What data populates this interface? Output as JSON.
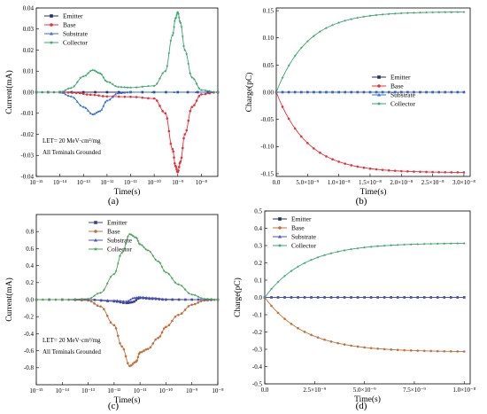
{
  "chart_data": [
    {
      "panel": "(a)",
      "type": "line",
      "xscale": "log",
      "xlim": [
        1e-15,
        5e-08
      ],
      "ylim": [
        -0.04,
        0.04
      ],
      "xlabel": "Time(s)",
      "ylabel": "Current(mA)",
      "xticks": [
        1e-15,
        1e-14,
        1e-13,
        1e-12,
        1e-11,
        1e-10,
        1e-09,
        1e-08
      ],
      "xticklabels": [
        "10⁻¹⁵",
        "10⁻¹⁴",
        "10⁻¹³",
        "10⁻¹²",
        "10⁻¹¹",
        "10⁻¹⁰",
        "10⁻⁹",
        "10⁻⁸"
      ],
      "yticks": [
        -0.04,
        -0.03,
        -0.02,
        -0.01,
        0.0,
        0.01,
        0.02,
        0.03,
        0.04
      ],
      "yticklabels": [
        "-0.04",
        "-0.03",
        "-0.02",
        "-0.01",
        "0.00",
        "0.01",
        "0.02",
        "0.03",
        "0.04"
      ],
      "legend": "top-left",
      "annotations": [
        "LET= 20 MeV·cm²/mg",
        "All Teminals Grounded"
      ],
      "series": [
        {
          "name": "Emitter",
          "color": "#1f2f6b",
          "marker": "square",
          "x": [
            1e-15,
            1e-13,
            1e-11,
            1e-09,
            5e-08
          ],
          "y": [
            0,
            0,
            0,
            0,
            0
          ]
        },
        {
          "name": "Base",
          "color": "#e8303a",
          "marker": "circle",
          "x": [
            1e-15,
            1e-14,
            5e-14,
            2e-13,
            1e-12,
            1e-11,
            1e-10,
            3e-10,
            6e-10,
            8e-10,
            1e-09,
            1.3e-09,
            2e-09,
            4e-09,
            1e-08,
            5e-08
          ],
          "y": [
            0,
            0,
            -0.0003,
            -0.0012,
            -0.002,
            -0.0022,
            -0.003,
            -0.01,
            -0.027,
            -0.035,
            -0.038,
            -0.033,
            -0.02,
            -0.007,
            -0.001,
            0
          ]
        },
        {
          "name": "Substrate",
          "color": "#2f6fd6",
          "marker": "triangle",
          "x": [
            1e-15,
            1e-14,
            3e-14,
            1e-13,
            2.5e-13,
            5e-13,
            1e-12,
            3e-12,
            1e-11,
            5e-08
          ],
          "y": [
            0,
            0,
            -0.002,
            -0.007,
            -0.0105,
            -0.009,
            -0.004,
            -0.0005,
            0,
            0
          ]
        },
        {
          "name": "Collector",
          "color": "#3aa56e",
          "marker": "star",
          "x": [
            1e-15,
            1e-14,
            3e-14,
            1e-13,
            2.5e-13,
            5e-13,
            1e-12,
            3e-12,
            1e-11,
            1e-10,
            3e-10,
            6e-10,
            8e-10,
            1e-09,
            1.3e-09,
            2e-09,
            4e-09,
            1e-08,
            5e-08
          ],
          "y": [
            0,
            0,
            0.002,
            0.0075,
            0.0105,
            0.009,
            0.005,
            0.0025,
            0.0022,
            0.003,
            0.01,
            0.027,
            0.035,
            0.038,
            0.033,
            0.02,
            0.007,
            0.001,
            0
          ]
        }
      ]
    },
    {
      "panel": "(b)",
      "type": "line",
      "xscale": "linear",
      "xlim": [
        0,
        3.1e-08
      ],
      "ylim": [
        -0.155,
        0.155
      ],
      "xlabel": "Time(s)",
      "ylabel": "Charge(pC)",
      "xticks": [
        0,
        5e-09,
        1e-08,
        1.5e-08,
        2e-08,
        2.5e-08,
        3e-08
      ],
      "xticklabels": [
        "0.0",
        "5.0×10⁻⁹",
        "1.0×10⁻⁸",
        "1.5×10⁻⁸",
        "2.0×10⁻⁸",
        "2.5×10⁻⁸",
        "3.0×10⁻⁸"
      ],
      "yticks": [
        -0.15,
        -0.1,
        -0.05,
        0.0,
        0.05,
        0.1,
        0.15
      ],
      "yticklabels": [
        "-0.15",
        "-0.10",
        "-0.05",
        "0.00",
        "0.05",
        "0.10",
        "0.15"
      ],
      "legend": "right",
      "series": [
        {
          "name": "Emitter",
          "color": "#1f2f6b",
          "marker": "square",
          "final": 0,
          "tau": 5e-09
        },
        {
          "name": "Base",
          "color": "#e8303a",
          "marker": "circle",
          "final": -0.148,
          "tau": 5e-09
        },
        {
          "name": "Substrate",
          "color": "#2f6fd6",
          "marker": "triangle",
          "final": 0,
          "tau": 5e-09
        },
        {
          "name": "Collector",
          "color": "#3aa56e",
          "marker": "star",
          "final": 0.148,
          "tau": 5e-09
        }
      ]
    },
    {
      "panel": "(c)",
      "type": "line",
      "xscale": "log",
      "xlim": [
        1e-15,
        1e-08
      ],
      "ylim": [
        -1.0,
        1.0
      ],
      "xlabel": "Time(s)",
      "ylabel": "Current(mA)",
      "xticks": [
        1e-15,
        1e-14,
        1e-13,
        1e-12,
        1e-11,
        1e-10,
        1e-09,
        1e-08
      ],
      "xticklabels": [
        "10⁻¹⁵",
        "10⁻¹⁴",
        "10⁻¹³",
        "10⁻¹²",
        "10⁻¹¹",
        "10⁻¹⁰",
        "10⁻⁹",
        "10⁻⁸"
      ],
      "yticks": [
        -0.8,
        -0.6,
        -0.4,
        -0.2,
        0.0,
        0.2,
        0.4,
        0.6,
        0.8
      ],
      "yticklabels": [
        "-0.8",
        "-0.6",
        "-0.4",
        "-0.2",
        "0.0",
        "0.2",
        "0.4",
        "0.6",
        "0.8"
      ],
      "legend": "top-right",
      "annotations": [
        "LET= 20 MeV·cm²/mg",
        "All Teminals Grounded"
      ],
      "series": [
        {
          "name": "Emitter",
          "color": "#3a3f8f",
          "marker": "square",
          "x": [
            1e-15,
            1e-13,
            1e-12,
            3e-12,
            5e-12,
            1e-11,
            3e-11,
            1e-10,
            1e-09,
            1e-08
          ],
          "y": [
            0,
            0,
            -0.02,
            -0.04,
            -0.03,
            0.02,
            0.01,
            0,
            0,
            0
          ]
        },
        {
          "name": "Base",
          "color": "#c2703a",
          "marker": "circle",
          "x": [
            1e-15,
            1e-14,
            1e-13,
            3e-13,
            1e-12,
            2e-12,
            4e-12,
            7e-12,
            1e-11,
            2e-11,
            5e-11,
            1e-10,
            3e-10,
            1e-09,
            3e-09,
            1e-08
          ],
          "y": [
            0,
            0,
            -0.01,
            -0.08,
            -0.3,
            -0.55,
            -0.78,
            -0.73,
            -0.62,
            -0.58,
            -0.45,
            -0.32,
            -0.18,
            -0.06,
            -0.01,
            0
          ]
        },
        {
          "name": "Substrate",
          "color": "#4a50c8",
          "marker": "triangle",
          "x": [
            1e-15,
            1e-13,
            1e-12,
            3e-12,
            6e-12,
            1e-11,
            3e-11,
            1e-10,
            1e-09,
            1e-08
          ],
          "y": [
            0,
            0,
            -0.01,
            -0.02,
            0.02,
            0.03,
            0.02,
            0.005,
            0,
            0
          ]
        },
        {
          "name": "Collector",
          "color": "#4aa25a",
          "marker": "star",
          "x": [
            1e-15,
            1e-14,
            1e-13,
            3e-13,
            1e-12,
            2e-12,
            4e-12,
            7e-12,
            1e-11,
            2e-11,
            5e-11,
            1e-10,
            3e-10,
            1e-09,
            3e-09,
            1e-08
          ],
          "y": [
            0,
            0,
            0.01,
            0.08,
            0.3,
            0.55,
            0.77,
            0.73,
            0.65,
            0.58,
            0.45,
            0.32,
            0.18,
            0.06,
            0.01,
            0
          ]
        }
      ]
    },
    {
      "panel": "(d)",
      "type": "line",
      "xscale": "linear",
      "xlim": [
        0,
        1.03e-08
      ],
      "ylim": [
        -0.5,
        0.5
      ],
      "xlabel": "Time(s)",
      "ylabel": "Charge(pC)",
      "xticks": [
        0,
        2.5e-09,
        5e-09,
        7.5e-09,
        1e-08
      ],
      "xticklabels": [
        "0.0",
        "2.5×10⁻⁹",
        "5.0×10⁻⁹",
        "7.5×10⁻⁹",
        "1.0×10⁻⁸"
      ],
      "yticks": [
        -0.5,
        -0.4,
        -0.3,
        -0.2,
        -0.1,
        0.0,
        0.1,
        0.2,
        0.3,
        0.4,
        0.5
      ],
      "yticklabels": [
        "-0.5",
        "-0.4",
        "-0.3",
        "-0.2",
        "-0.1",
        "0.0",
        "0.1",
        "0.2",
        "0.3",
        "0.4",
        "0.5"
      ],
      "legend": "top-left",
      "series": [
        {
          "name": "Emitter",
          "color": "#1f2f6b",
          "marker": "square",
          "final": 0,
          "tau": 2e-09
        },
        {
          "name": "Base",
          "color": "#c2703a",
          "marker": "circle",
          "final": -0.315,
          "tau": 2e-09
        },
        {
          "name": "Substrate",
          "color": "#4a50c8",
          "marker": "triangle",
          "final": 0,
          "tau": 2e-09
        },
        {
          "name": "Collector",
          "color": "#3aa56e",
          "marker": "star",
          "final": 0.315,
          "tau": 2e-09
        }
      ]
    }
  ],
  "panel_labels": {
    "a": "(a)",
    "b": "(b)",
    "c": "(c)",
    "d": "(d)"
  }
}
